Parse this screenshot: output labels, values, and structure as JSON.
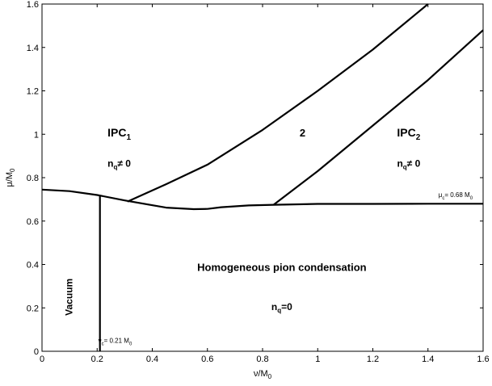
{
  "chart_data": {
    "type": "line",
    "xlabel": {
      "main": "ν/M",
      "sub": "0"
    },
    "ylabel": {
      "main": "μ/M",
      "sub": "0"
    },
    "xlim": [
      0,
      1.6
    ],
    "ylim": [
      0,
      1.6
    ],
    "xticks": [
      "0",
      "0.2",
      "0.4",
      "0.6",
      "0.8",
      "1",
      "1.2",
      "1.4",
      "1.6"
    ],
    "yticks": [
      "0",
      "0.2",
      "0.4",
      "0.6",
      "0.8",
      "1",
      "1.2",
      "1.4",
      "1.6"
    ],
    "grid": false,
    "series": [
      {
        "points": [
          [
            0.0,
            0.745
          ],
          [
            0.1,
            0.738
          ],
          [
            0.2,
            0.72
          ],
          [
            0.3,
            0.695
          ],
          [
            0.45,
            0.662
          ],
          [
            0.55,
            0.655
          ],
          [
            0.6,
            0.656
          ],
          [
            0.65,
            0.664
          ],
          [
            0.7,
            0.668
          ],
          [
            0.75,
            0.672
          ],
          [
            0.84,
            0.675
          ],
          [
            1.0,
            0.679
          ],
          [
            1.2,
            0.679
          ],
          [
            1.4,
            0.68
          ],
          [
            1.6,
            0.68
          ]
        ]
      },
      {
        "points": [
          [
            0.21,
            0.0
          ],
          [
            0.21,
            0.72
          ]
        ]
      },
      {
        "points": [
          [
            0.31,
            0.69
          ],
          [
            0.45,
            0.77
          ],
          [
            0.6,
            0.86
          ],
          [
            0.8,
            1.02
          ],
          [
            1.0,
            1.2
          ],
          [
            1.2,
            1.39
          ],
          [
            1.4,
            1.6
          ]
        ]
      },
      {
        "points": [
          [
            0.84,
            0.675
          ],
          [
            1.0,
            0.83
          ],
          [
            1.2,
            1.04
          ],
          [
            1.4,
            1.25
          ],
          [
            1.6,
            1.48
          ]
        ]
      }
    ],
    "annotations": {
      "ipc1": {
        "main": "IPC",
        "sub": "1",
        "x": 0.28,
        "y": 0.99
      },
      "ipc1_nq": {
        "pre": "n",
        "sub": "q",
        "post": "≠ 0",
        "x": 0.28,
        "y": 0.85
      },
      "two": {
        "text": "2",
        "x": 0.945,
        "y": 0.99
      },
      "ipc2": {
        "main": "IPC",
        "sub": "2",
        "x": 1.33,
        "y": 0.99
      },
      "ipc2_nq": {
        "pre": "n",
        "sub": "q",
        "post": "≠ 0",
        "x": 1.33,
        "y": 0.85
      },
      "homog": {
        "text": "Homogeneous pion condensation",
        "x": 0.87,
        "y": 0.37
      },
      "homog_nq": {
        "pre": "n",
        "sub": "q",
        "post": "=0",
        "x": 0.87,
        "y": 0.19
      },
      "vacuum": {
        "text": "Vacuum",
        "x": 0.11,
        "y": 0.25
      },
      "mu_c": {
        "pre": "μ",
        "sub": "c",
        "post": "= 0.68 M",
        "sub2": "0",
        "x": 1.5,
        "y": 0.71
      },
      "nu_c": {
        "pre": "ν",
        "sub": "c",
        "post": "= 0.21 M",
        "sub2": "0",
        "x": 0.265,
        "y": 0.04
      }
    }
  }
}
